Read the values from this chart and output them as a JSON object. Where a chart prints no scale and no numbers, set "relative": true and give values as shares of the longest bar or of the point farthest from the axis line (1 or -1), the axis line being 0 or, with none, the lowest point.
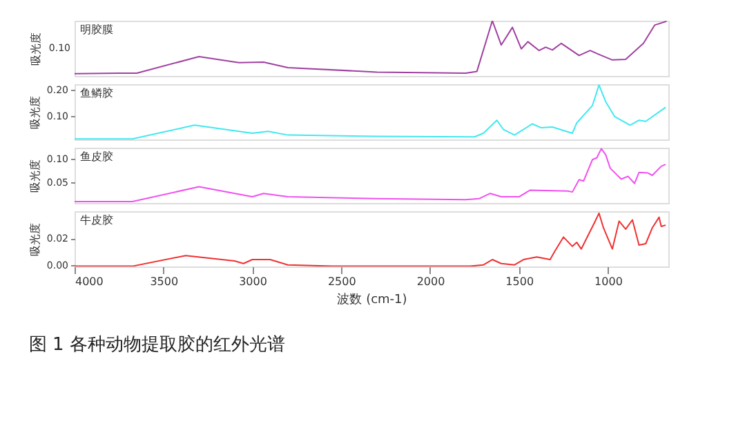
{
  "chart_data": [
    {
      "type": "line",
      "ylabel": "吸光度",
      "relative": true,
      "tick_labels": false,
      "grid": false,
      "xlim": [
        4000,
        660
      ],
      "annotations": [
        "0.10"
      ],
      "series": [
        {
          "name": "明胶膜",
          "color": "#a040a0",
          "x": [
            4000,
            3750,
            3650,
            3300,
            3075,
            2937,
            2800,
            2300,
            1800,
            1737,
            1650,
            1600,
            1537,
            1487,
            1450,
            1387,
            1350,
            1312,
            1262,
            1162,
            1100,
            1050,
            975,
            900,
            800,
            737,
            670
          ],
          "values": [
            0.04,
            0.05,
            0.05,
            0.35,
            0.24,
            0.25,
            0.15,
            0.07,
            0.05,
            0.08,
            1,
            0.56,
            0.88,
            0.49,
            0.62,
            0.46,
            0.52,
            0.47,
            0.59,
            0.37,
            0.46,
            0.39,
            0.29,
            0.3,
            0.59,
            0.92,
            0.99
          ]
        }
      ]
    },
    {
      "type": "line",
      "ylabel": "吸光度",
      "tick_labels": "y",
      "grid": false,
      "xlim": [
        4000,
        660
      ],
      "ylim": [
        0.009,
        0.222
      ],
      "yticks": [
        {
          "value": 0.1,
          "label": "0.10"
        },
        {
          "value": 0.2,
          "label": "0.20"
        }
      ],
      "series": [
        {
          "name": "鱼鳞胶",
          "color": "#40e8f0",
          "x": [
            4000,
            3675,
            3325,
            3000,
            2912,
            2800,
            2300,
            1750,
            1700,
            1625,
            1587,
            1525,
            1425,
            1375,
            1312,
            1200,
            1175,
            1087,
            1050,
            1012,
            962,
            875,
            825,
            787,
            675
          ],
          "values": [
            0.011,
            0.011,
            0.064,
            0.033,
            0.04,
            0.026,
            0.021,
            0.019,
            0.033,
            0.083,
            0.047,
            0.026,
            0.069,
            0.054,
            0.057,
            0.033,
            0.073,
            0.14,
            0.219,
            0.154,
            0.097,
            0.064,
            0.083,
            0.079,
            0.133
          ]
        }
      ]
    },
    {
      "type": "line",
      "ylabel": "吸光度",
      "tick_labels": "y",
      "grid": false,
      "xlim": [
        4000,
        660
      ],
      "ylim": [
        0.007,
        0.123
      ],
      "yticks": [
        {
          "value": 0.05,
          "label": "0.05"
        },
        {
          "value": 0.1,
          "label": "0.10"
        }
      ],
      "series": [
        {
          "name": "鱼皮胶",
          "color": "#f050f0",
          "x": [
            4000,
            3675,
            3300,
            3000,
            2937,
            2800,
            2300,
            1800,
            1725,
            1662,
            1600,
            1500,
            1437,
            1225,
            1200,
            1162,
            1137,
            1087,
            1062,
            1037,
            1012,
            987,
            925,
            887,
            850,
            825,
            775,
            750,
            700,
            675
          ],
          "values": [
            0.01,
            0.01,
            0.041,
            0.02,
            0.027,
            0.02,
            0.016,
            0.014,
            0.016,
            0.027,
            0.02,
            0.02,
            0.034,
            0.032,
            0.03,
            0.056,
            0.053,
            0.098,
            0.102,
            0.121,
            0.108,
            0.08,
            0.057,
            0.063,
            0.048,
            0.071,
            0.07,
            0.065,
            0.084,
            0.088
          ]
        }
      ]
    },
    {
      "type": "line",
      "ylabel": "吸光度",
      "xlabel": "波数 (cm-1)",
      "grid": false,
      "xlim": [
        4000,
        660
      ],
      "xticks": [
        4000,
        3500,
        3000,
        2500,
        2000,
        1500,
        1000
      ],
      "ylim": [
        -0.0012,
        0.0405
      ],
      "yticks": [
        {
          "value": 0.0,
          "label": "0.00"
        },
        {
          "value": 0.02,
          "label": "0.02"
        }
      ],
      "annotations": [
        "图 1  各种动物提取胶的红外光谱"
      ],
      "series": [
        {
          "name": "牛皮胶",
          "color": "#f03030",
          "x": [
            4000,
            3675,
            3375,
            3100,
            3050,
            3000,
            2900,
            2800,
            2550,
            2050,
            1775,
            1700,
            1650,
            1600,
            1525,
            1475,
            1400,
            1325,
            1300,
            1250,
            1200,
            1175,
            1150,
            1075,
            1050,
            1025,
            975,
            937,
            900,
            862,
            825,
            787,
            750,
            712,
            700,
            675
          ],
          "values": [
            -0.001,
            -0.001,
            0.007,
            0.003,
            0.001,
            0.004,
            0.004,
            0.0,
            -0.001,
            -0.001,
            -0.001,
            0.0,
            0.004,
            0.001,
            0.0,
            0.004,
            0.006,
            0.004,
            0.01,
            0.021,
            0.014,
            0.017,
            0.012,
            0.032,
            0.039,
            0.028,
            0.012,
            0.033,
            0.027,
            0.034,
            0.015,
            0.016,
            0.028,
            0.036,
            0.029,
            0.03
          ]
        }
      ]
    }
  ]
}
